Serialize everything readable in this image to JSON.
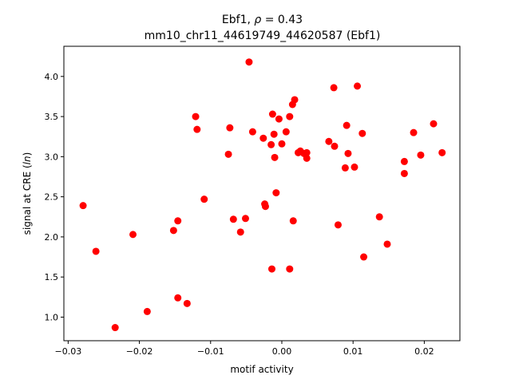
{
  "chart_data": {
    "type": "scatter",
    "title_line1_prefix": "Ebf1, ",
    "title_line1_rho": "ρ",
    "title_line1_suffix": " = 0.43",
    "title_line2": "mm10_chr11_44619749_44620587 (Ebf1)",
    "xlabel": "motif activity",
    "ylabel_prefix": "signal at CRE (",
    "ylabel_italic": "ln",
    "ylabel_suffix": ")",
    "xlim": [
      -0.0306,
      0.025
    ],
    "ylim": [
      0.706,
      4.376
    ],
    "xticks": [
      -0.03,
      -0.02,
      -0.01,
      0.0,
      0.01,
      0.02
    ],
    "xtick_labels": [
      "−0.03",
      "−0.02",
      "−0.01",
      "0.00",
      "0.01",
      "0.02"
    ],
    "yticks": [
      1.0,
      1.5,
      2.0,
      2.5,
      3.0,
      3.5,
      4.0
    ],
    "ytick_labels": [
      "1.0",
      "1.5",
      "2.0",
      "2.5",
      "3.0",
      "3.5",
      "4.0"
    ],
    "grid": false,
    "marker_color": "#ff0000",
    "points": [
      [
        -0.0279,
        2.39
      ],
      [
        -0.0261,
        1.82
      ],
      [
        -0.0234,
        0.87
      ],
      [
        -0.0209,
        2.03
      ],
      [
        -0.0189,
        1.07
      ],
      [
        -0.0152,
        2.08
      ],
      [
        -0.0146,
        2.2
      ],
      [
        -0.0146,
        1.24
      ],
      [
        -0.0133,
        1.17
      ],
      [
        -0.0121,
        3.5
      ],
      [
        -0.0119,
        3.34
      ],
      [
        -0.0109,
        2.47
      ],
      [
        -0.0075,
        3.03
      ],
      [
        -0.0073,
        3.36
      ],
      [
        -0.0068,
        2.22
      ],
      [
        -0.0058,
        2.06
      ],
      [
        -0.0051,
        2.23
      ],
      [
        -0.0046,
        4.18
      ],
      [
        -0.0041,
        3.31
      ],
      [
        -0.0026,
        3.23
      ],
      [
        -0.0024,
        2.41
      ],
      [
        -0.0023,
        2.38
      ],
      [
        -0.0015,
        3.15
      ],
      [
        -0.0014,
        1.6
      ],
      [
        -0.0013,
        3.53
      ],
      [
        -0.0011,
        3.28
      ],
      [
        -0.001,
        2.99
      ],
      [
        -0.0008,
        2.55
      ],
      [
        -0.0004,
        3.47
      ],
      [
        0.0,
        3.16
      ],
      [
        0.0006,
        3.31
      ],
      [
        0.0011,
        3.5
      ],
      [
        0.0011,
        1.6
      ],
      [
        0.0015,
        3.65
      ],
      [
        0.0016,
        2.2
      ],
      [
        0.0018,
        3.71
      ],
      [
        0.0023,
        3.05
      ],
      [
        0.0026,
        3.07
      ],
      [
        0.0031,
        3.04
      ],
      [
        0.0035,
        3.05
      ],
      [
        0.0035,
        2.98
      ],
      [
        0.0066,
        3.19
      ],
      [
        0.0073,
        3.86
      ],
      [
        0.0074,
        3.13
      ],
      [
        0.0079,
        2.15
      ],
      [
        0.0089,
        2.86
      ],
      [
        0.0091,
        3.39
      ],
      [
        0.0093,
        3.04
      ],
      [
        0.0102,
        2.87
      ],
      [
        0.0106,
        3.88
      ],
      [
        0.0113,
        3.29
      ],
      [
        0.0115,
        1.75
      ],
      [
        0.0137,
        2.25
      ],
      [
        0.0148,
        1.91
      ],
      [
        0.0172,
        2.94
      ],
      [
        0.0172,
        2.79
      ],
      [
        0.0185,
        3.3
      ],
      [
        0.0195,
        3.02
      ],
      [
        0.0213,
        3.41
      ],
      [
        0.0225,
        3.05
      ]
    ]
  }
}
